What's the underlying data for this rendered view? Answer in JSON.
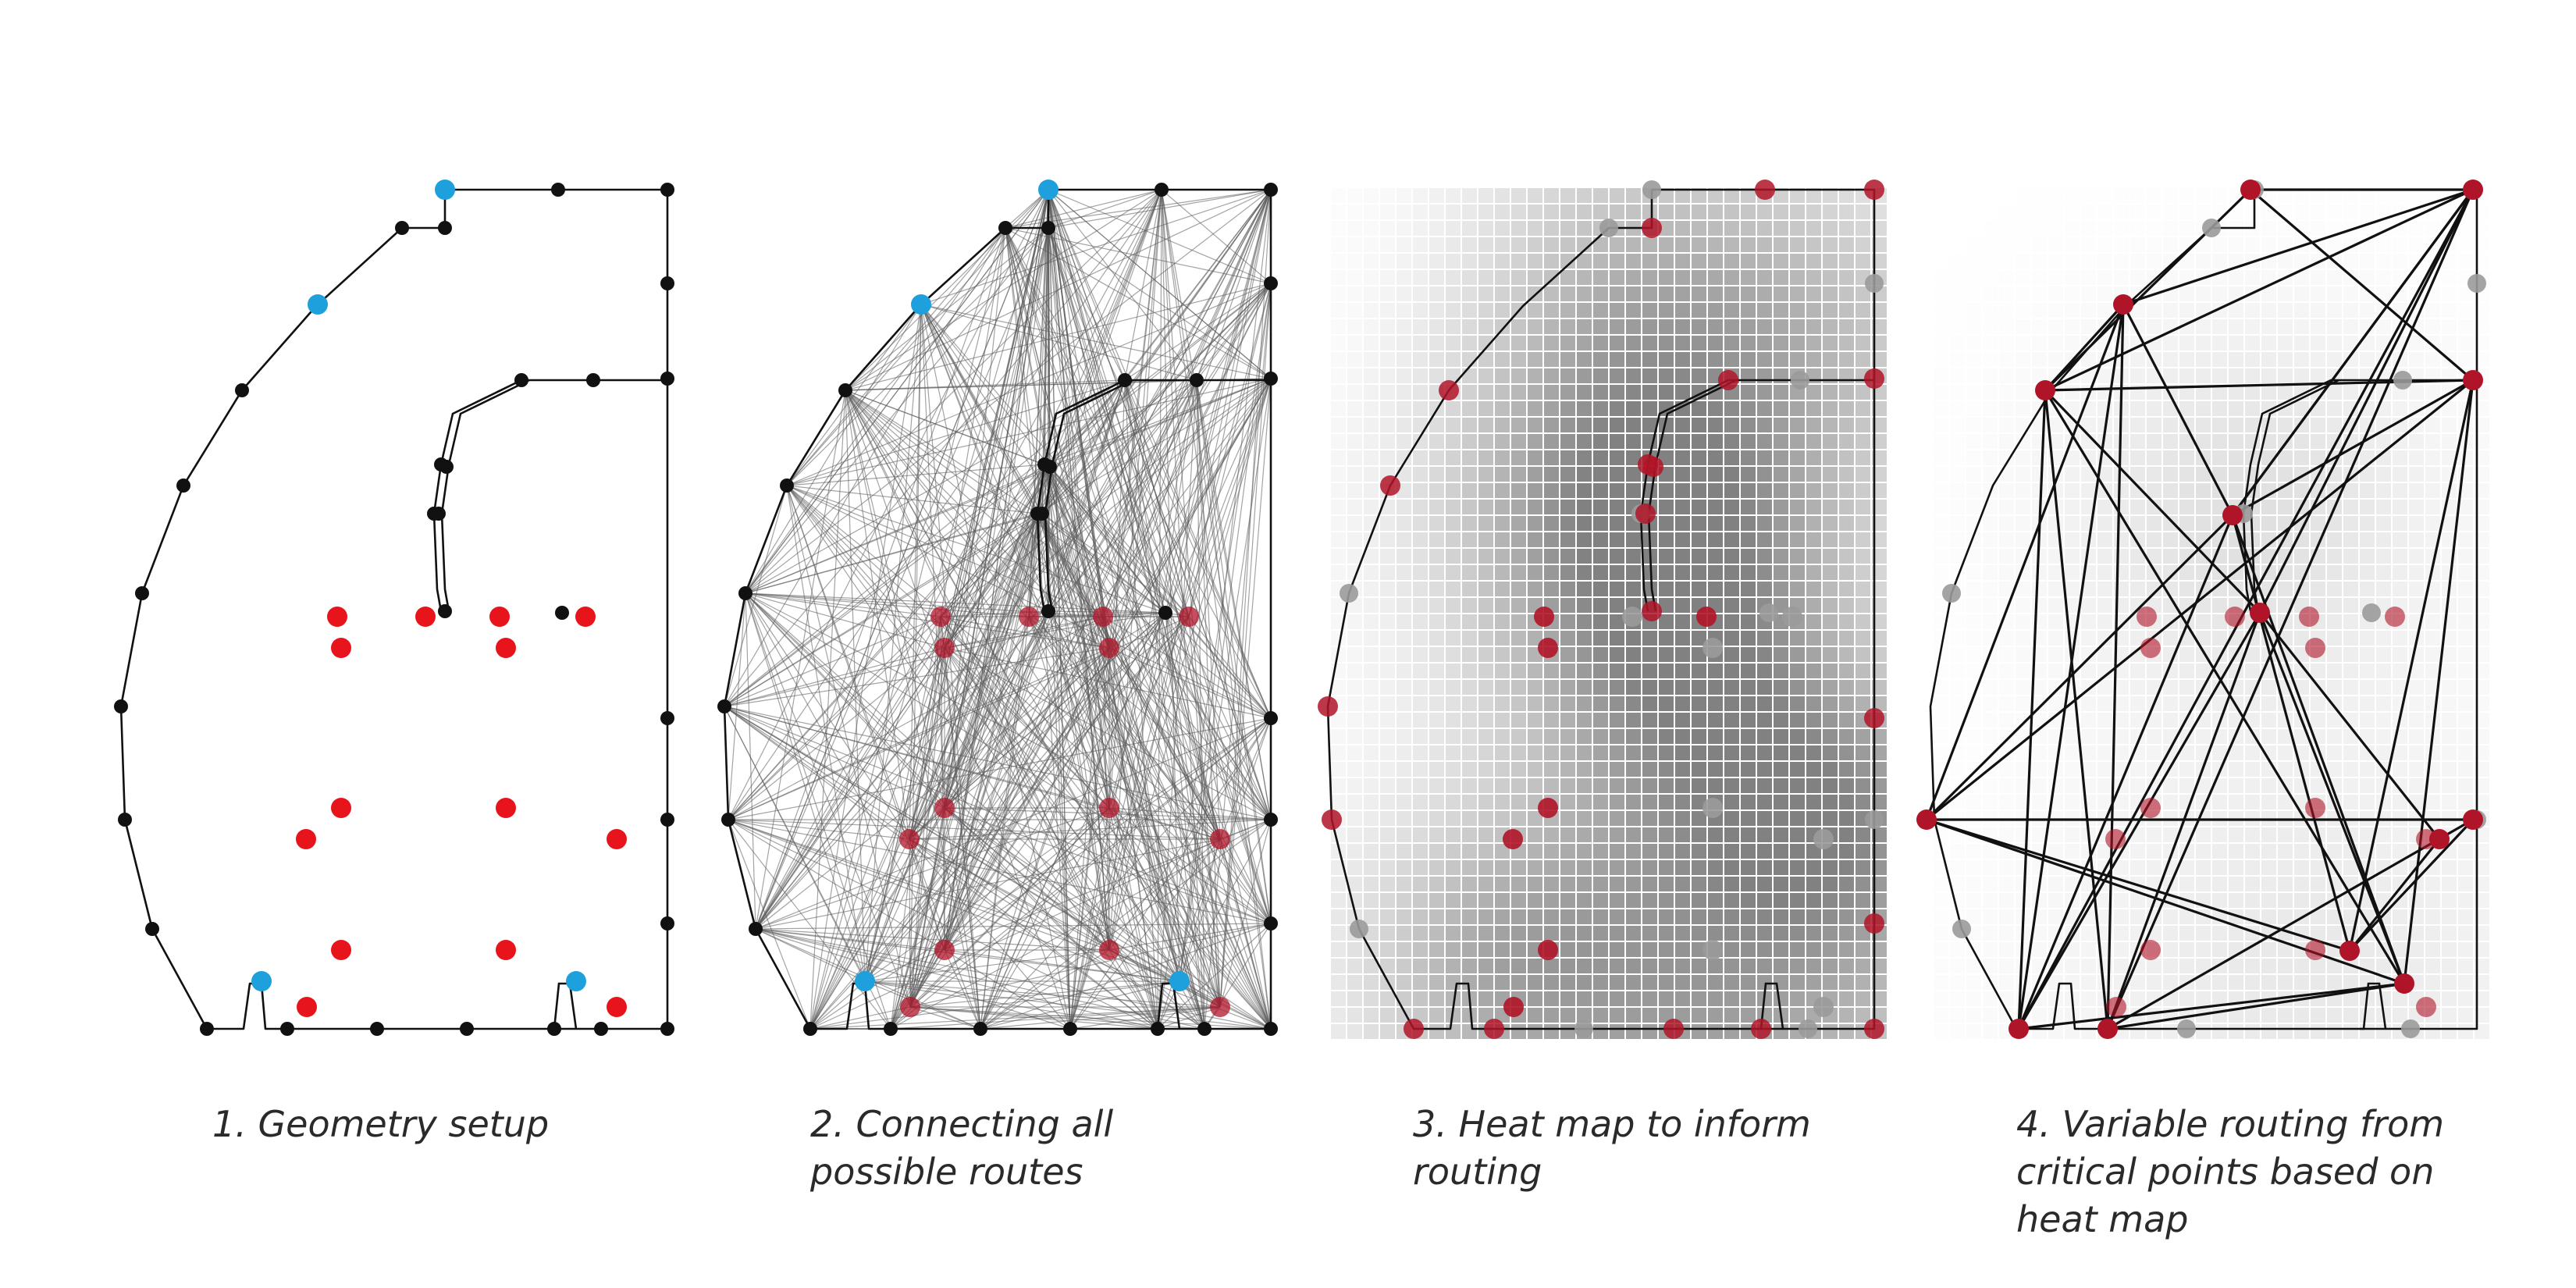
{
  "panels": [
    {
      "caption": "1. Geometry setup"
    },
    {
      "caption": "2. Connecting all\npossible routes"
    },
    {
      "caption": "3. Heat map to inform\nrouting"
    },
    {
      "caption": "4. Variable routing from\ncritical points based on\nheat map"
    }
  ],
  "colors": {
    "outline": "#111111",
    "vertex": "#111111",
    "entry_point": "#1ea0dc",
    "critical_point": "#e8141c",
    "critical_point_dark": "#b01428",
    "inactive_point": "#9a9a9a",
    "route_line": "#5a5a5a",
    "selected_route": "#111111",
    "heat_low": "#ffffff",
    "heat_high": "#8a8a8a"
  }
}
